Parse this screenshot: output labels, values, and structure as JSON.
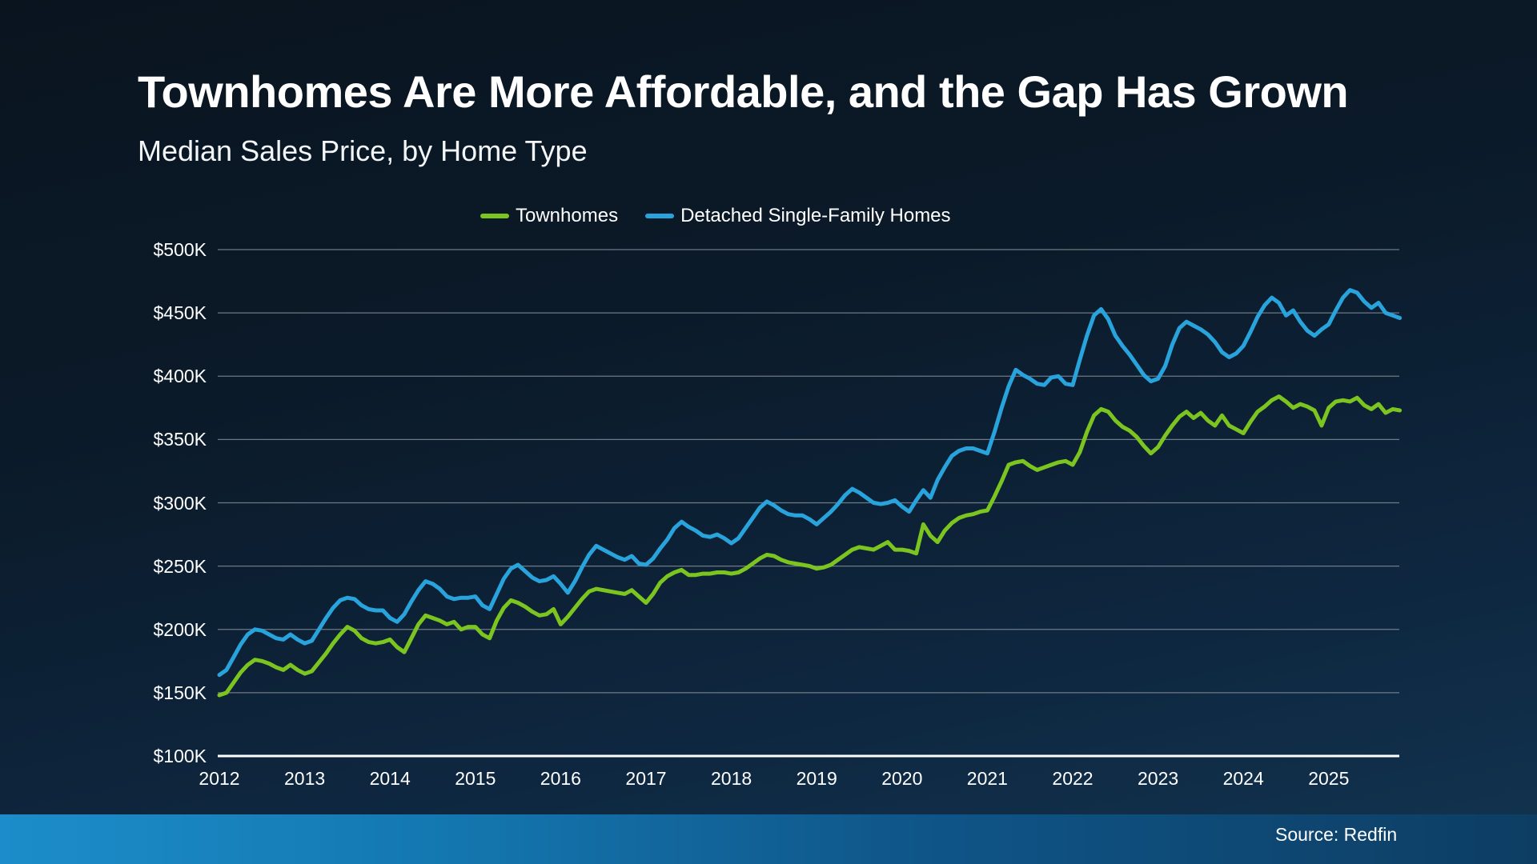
{
  "page": {
    "title": "Townhomes Are More Affordable, and the Gap Has Grown",
    "subtitle": "Median Sales Price, by Home Type",
    "source": "Source: Redfin"
  },
  "colors": {
    "background_top": "#0a141f",
    "background_bottom": "#123450",
    "townhomes_line": "#7CC41F",
    "detached_line": "#29A3DC",
    "gridline": "#7F8A93",
    "axis_line": "#FFFFFF",
    "footer_bar_left": "#1C8DCA",
    "footer_bar_right": "#0D3D63",
    "text": "#FFFFFF"
  },
  "chart_data": {
    "type": "line",
    "title": "Townhomes Are More Affordable, and the Gap Has Grown",
    "subtitle": "Median Sales Price, by Home Type",
    "unit": "USD thousands",
    "frequency": "monthly",
    "x_start": "2012-01",
    "x_end": "2025-11",
    "grid": "horizontal",
    "legend_position": "top",
    "ylim": [
      100,
      500
    ],
    "y_ticks": [
      100,
      150,
      200,
      250,
      300,
      350,
      400,
      450,
      500
    ],
    "y_tick_labels": [
      "$100K",
      "$150K",
      "$200K",
      "$250K",
      "$300K",
      "$350K",
      "$400K",
      "$450K",
      "$500K"
    ],
    "x_tick_labels": [
      "2012",
      "2013",
      "2014",
      "2015",
      "2016",
      "2017",
      "2018",
      "2019",
      "2020",
      "2021",
      "2022",
      "2023",
      "2024",
      "2025"
    ],
    "series": [
      {
        "name": "Townhomes",
        "color": "#7CC41F",
        "values": [
          148,
          150,
          158,
          166,
          172,
          176,
          175,
          173,
          170,
          168,
          172,
          168,
          165,
          167,
          174,
          181,
          189,
          196,
          202,
          199,
          193,
          190,
          189,
          190,
          192,
          186,
          182,
          193,
          204,
          211,
          209,
          207,
          204,
          206,
          200,
          202,
          202,
          196,
          193,
          207,
          217,
          223,
          221,
          218,
          214,
          211,
          212,
          216,
          204,
          210,
          217,
          224,
          230,
          232,
          231,
          230,
          229,
          228,
          231,
          226,
          221,
          228,
          237,
          242,
          245,
          247,
          243,
          243,
          244,
          244,
          245,
          245,
          244,
          245,
          248,
          252,
          256,
          259,
          258,
          255,
          253,
          252,
          251,
          250,
          248,
          249,
          251,
          255,
          259,
          263,
          265,
          264,
          263,
          266,
          269,
          263,
          263,
          262,
          260,
          283,
          274,
          269,
          278,
          284,
          288,
          290,
          291,
          293,
          294,
          305,
          317,
          330,
          332,
          333,
          329,
          326,
          328,
          330,
          332,
          333,
          330,
          340,
          356,
          369,
          374,
          372,
          365,
          360,
          357,
          352,
          345,
          339,
          344,
          353,
          361,
          368,
          372,
          367,
          371,
          365,
          361,
          369,
          361,
          358,
          355,
          364,
          372,
          376,
          381,
          384,
          380,
          375,
          378,
          376,
          373,
          361,
          375,
          380,
          381,
          380,
          383,
          377,
          374,
          378,
          371,
          374,
          373
        ]
      },
      {
        "name": "Detached Single-Family Homes",
        "color": "#29A3DC",
        "values": [
          164,
          168,
          178,
          188,
          196,
          200,
          199,
          196,
          193,
          192,
          196,
          192,
          189,
          191,
          200,
          209,
          217,
          223,
          225,
          224,
          219,
          216,
          215,
          215,
          209,
          206,
          212,
          222,
          231,
          238,
          236,
          232,
          226,
          224,
          225,
          225,
          226,
          219,
          216,
          228,
          240,
          248,
          251,
          246,
          241,
          238,
          239,
          242,
          236,
          229,
          238,
          249,
          259,
          266,
          263,
          260,
          257,
          255,
          258,
          252,
          251,
          256,
          264,
          271,
          280,
          285,
          281,
          278,
          274,
          273,
          275,
          272,
          268,
          272,
          280,
          288,
          296,
          301,
          298,
          294,
          291,
          290,
          290,
          287,
          283,
          288,
          293,
          299,
          306,
          311,
          308,
          304,
          300,
          299,
          300,
          302,
          297,
          293,
          302,
          310,
          304,
          318,
          328,
          337,
          341,
          343,
          343,
          341,
          339,
          356,
          375,
          392,
          405,
          401,
          398,
          394,
          393,
          399,
          400,
          394,
          393,
          413,
          432,
          448,
          453,
          445,
          432,
          424,
          417,
          409,
          401,
          396,
          398,
          408,
          425,
          438,
          443,
          440,
          437,
          433,
          427,
          419,
          415,
          418,
          424,
          435,
          447,
          456,
          462,
          458,
          448,
          452,
          443,
          436,
          432,
          437,
          441,
          452,
          462,
          468,
          466,
          459,
          454,
          458,
          450,
          448,
          446
        ]
      }
    ]
  }
}
